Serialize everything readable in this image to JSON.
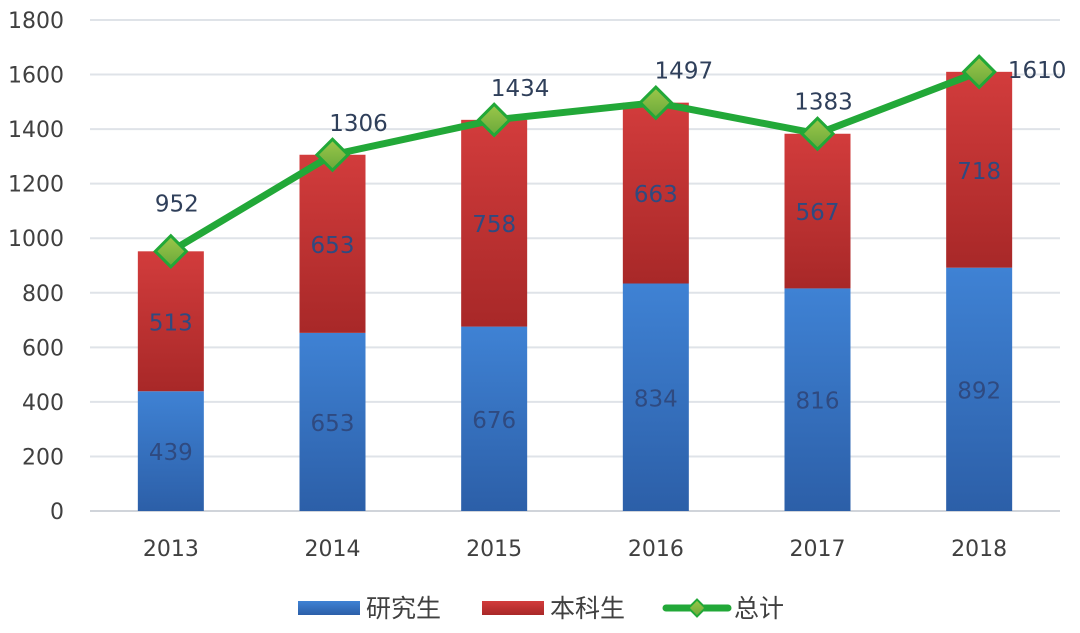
{
  "chart_data": {
    "type": "bar",
    "stacked": true,
    "categories": [
      "2013",
      "2014",
      "2015",
      "2016",
      "2017",
      "2018"
    ],
    "series": [
      {
        "name": "研究生",
        "type": "bar",
        "color": "#3a78c8",
        "values": [
          439,
          653,
          676,
          834,
          816,
          892
        ]
      },
      {
        "name": "本科生",
        "type": "bar",
        "color": "#c83232",
        "values": [
          513,
          653,
          758,
          663,
          567,
          718
        ]
      },
      {
        "name": "总计",
        "type": "line",
        "color": "#22a838",
        "marker_color": "#7ab648",
        "values": [
          952,
          1306,
          1434,
          1497,
          1383,
          1610
        ]
      }
    ],
    "ylim": [
      0,
      1800
    ],
    "yticks": [
      0,
      200,
      400,
      600,
      800,
      1000,
      1200,
      1400,
      1600,
      1800
    ],
    "grid": true,
    "legend": "bottom",
    "title": "",
    "xlabel": "",
    "ylabel": ""
  }
}
